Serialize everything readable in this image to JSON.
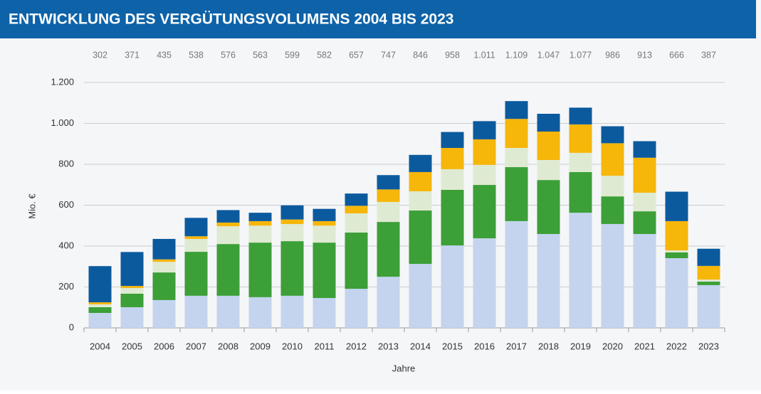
{
  "chart_data": {
    "type": "stacked_bar",
    "title": "ENTWICKLUNG DES VERGÜTUNGSVOLUMENS 2004 BIS 2023",
    "y_label": "Mio. €",
    "x_label": "Jahre",
    "categories": [
      "2004",
      "2005",
      "2006",
      "2007",
      "2008",
      "2009",
      "2010",
      "2011",
      "2012",
      "2013",
      "2014",
      "2015",
      "2016",
      "2017",
      "2018",
      "2019",
      "2020",
      "2021",
      "2022",
      "2023"
    ],
    "series": [
      {
        "color": "#c4d4ee",
        "values": [
          73,
          101,
          136,
          157,
          157,
          150,
          157,
          146,
          191,
          250,
          313,
          403,
          438,
          522,
          459,
          563,
          508,
          459,
          341,
          209
        ]
      },
      {
        "color": "#3c9f37",
        "values": [
          28,
          66,
          135,
          215,
          253,
          267,
          267,
          271,
          275,
          268,
          261,
          272,
          261,
          264,
          264,
          199,
          135,
          111,
          28,
          17
        ]
      },
      {
        "color": "#dfead2",
        "values": [
          14,
          28,
          52,
          63,
          87,
          83,
          84,
          83,
          94,
          98,
          94,
          101,
          98,
          94,
          98,
          94,
          101,
          91,
          10,
          10
        ]
      },
      {
        "color": "#f6b60a",
        "values": [
          10,
          10,
          12,
          13,
          18,
          22,
          22,
          22,
          37,
          61,
          94,
          104,
          125,
          142,
          139,
          139,
          159,
          171,
          143,
          67
        ]
      },
      {
        "color": "#0b5a9e",
        "values": [
          177,
          166,
          100,
          90,
          61,
          41,
          69,
          60,
          60,
          70,
          84,
          78,
          89,
          87,
          87,
          82,
          83,
          81,
          144,
          84
        ]
      }
    ],
    "totals": {
      "values": [
        302,
        371,
        435,
        538,
        576,
        563,
        599,
        582,
        657,
        747,
        846,
        958,
        1011,
        1109,
        1047,
        1077,
        986,
        913,
        666,
        387
      ],
      "value_labels": [
        "302",
        "371",
        "435",
        "538",
        "576",
        "563",
        "599",
        "582",
        "657",
        "747",
        "846",
        "958",
        "1.011",
        "1.109",
        "1.047",
        "1.077",
        "986",
        "913",
        "666",
        "387"
      ]
    },
    "ylim": [
      0,
      1200
    ],
    "yticks": [
      0,
      200,
      400,
      600,
      800,
      {
        "value": 1000,
        "label": "1.000"
      },
      {
        "value": 1200,
        "label": "1.200"
      }
    ],
    "grid": true
  }
}
